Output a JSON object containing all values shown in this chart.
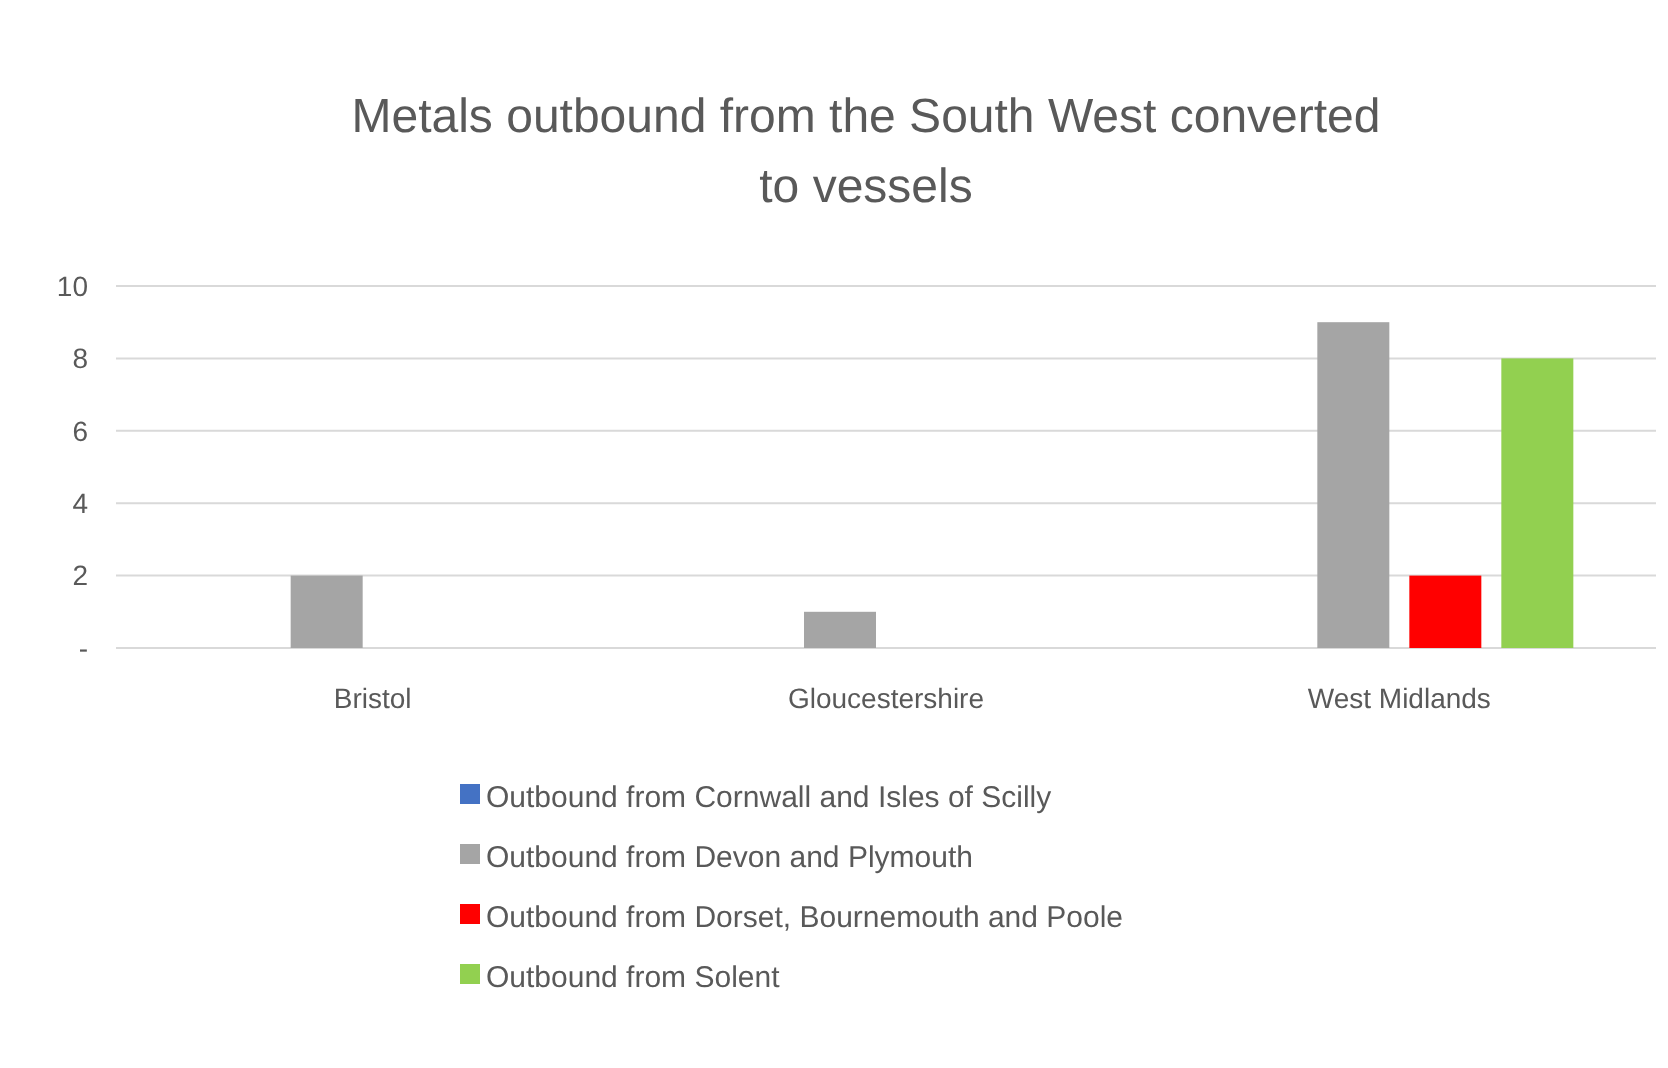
{
  "chart_data": {
    "type": "bar",
    "title": "Metals outbound from the South West converted to vessels",
    "categories": [
      "Bristol",
      "Gloucestershire",
      "West Midlands"
    ],
    "series": [
      {
        "name": "Outbound from Cornwall and Isles of Scilly",
        "color": "#4472c4",
        "values": [
          0,
          0,
          0
        ]
      },
      {
        "name": "Outbound from Devon and Plymouth",
        "color": "#a5a5a5",
        "values": [
          2,
          1,
          9
        ]
      },
      {
        "name": "Outbound from Dorset, Bournemouth and Poole",
        "color": "#ff0000",
        "values": [
          0,
          0,
          2
        ]
      },
      {
        "name": "Outbound from Solent",
        "color": "#92d050",
        "values": [
          0,
          0,
          8
        ]
      }
    ],
    "ylim": [
      0,
      10
    ],
    "yticks": [
      {
        "value": 0,
        "label": "-"
      },
      2,
      4,
      6,
      8,
      10
    ],
    "grid": "y",
    "legend": "bottom"
  }
}
